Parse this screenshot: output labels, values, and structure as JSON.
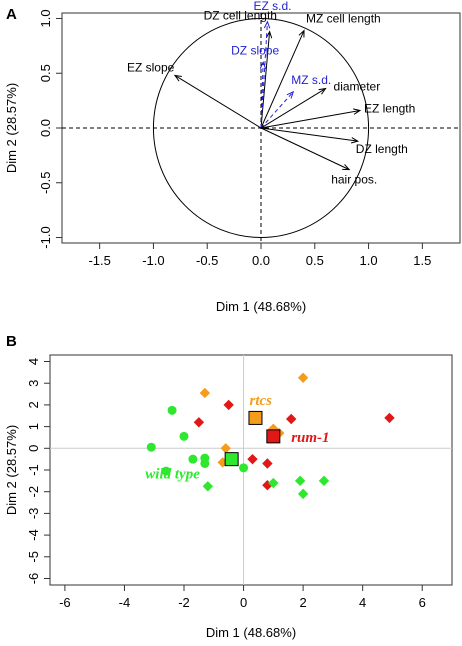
{
  "chart_data": [
    {
      "panel": "A",
      "type": "scatter",
      "subtype": "pca-correlation-circle",
      "xlabel": "Dim 1 (48.68%)",
      "ylabel": "Dim 2 (28.57%)",
      "xlim": [
        -1.85,
        1.85
      ],
      "ylim": [
        -1.05,
        1.05
      ],
      "x_ticks": [
        "-1.5",
        "-1.0",
        "-0.5",
        "0.0",
        "0.5",
        "1.0",
        "1.5"
      ],
      "y_ticks": [
        "-1.0",
        "-0.5",
        "0.0",
        "0.5",
        "1.0"
      ],
      "grid": false,
      "unit_circle": true,
      "active_color": "#000000",
      "supplementary_color": "#1f1fd6",
      "variables": [
        {
          "label": "EZ slope",
          "x": -0.8,
          "y": 0.48,
          "supplementary": false
        },
        {
          "label": "DZ cell length",
          "x": 0.08,
          "y": 0.88,
          "supplementary": false
        },
        {
          "label": "MZ cell length",
          "x": 0.4,
          "y": 0.89,
          "supplementary": false
        },
        {
          "label": "EZ s.d.",
          "x": 0.06,
          "y": 0.97,
          "supplementary": true
        },
        {
          "label": "DZ slope",
          "x": 0.02,
          "y": 0.6,
          "supplementary": true
        },
        {
          "label": "MZ s.d.",
          "x": 0.3,
          "y": 0.33,
          "supplementary": true
        },
        {
          "label": "diameter",
          "x": 0.6,
          "y": 0.36,
          "supplementary": false
        },
        {
          "label": "EZ length",
          "x": 0.92,
          "y": 0.16,
          "supplementary": false
        },
        {
          "label": "DZ length",
          "x": 0.9,
          "y": -0.12,
          "supplementary": false
        },
        {
          "label": "hair pos.",
          "x": 0.82,
          "y": -0.38,
          "supplementary": false
        }
      ]
    },
    {
      "panel": "B",
      "type": "scatter",
      "subtype": "pca-individuals",
      "xlabel": "Dim 1 (48.68%)",
      "ylabel": "Dim 2 (28.57%)",
      "xlim": [
        -6.5,
        7.0
      ],
      "ylim": [
        -6.3,
        4.3
      ],
      "x_ticks": [
        "-6",
        "-4",
        "-2",
        "0",
        "2",
        "4",
        "6"
      ],
      "y_ticks": [
        "-6",
        "-5",
        "-4",
        "-3",
        "-2",
        "-1",
        "0",
        "1",
        "2",
        "3",
        "4"
      ],
      "grid": false,
      "groups": [
        {
          "name": "rtcs",
          "color": "#f59c1a",
          "centroid": {
            "x": 0.4,
            "y": 1.4
          },
          "label_pos": {
            "x": 0.2,
            "y": 2.0
          },
          "points": [
            {
              "x": -1.3,
              "y": 2.55,
              "shape": "diamond"
            },
            {
              "x": 2.0,
              "y": 3.25,
              "shape": "diamond"
            },
            {
              "x": -0.6,
              "y": 0.0,
              "shape": "diamond"
            },
            {
              "x": -0.7,
              "y": -0.65,
              "shape": "diamond"
            },
            {
              "x": 1.0,
              "y": 0.9,
              "shape": "diamond"
            },
            {
              "x": 1.2,
              "y": 0.7,
              "shape": "diamond"
            }
          ]
        },
        {
          "name": "rum-1",
          "color": "#e01818",
          "centroid": {
            "x": 1.0,
            "y": 0.55
          },
          "label_pos": {
            "x": 1.6,
            "y": 0.3
          },
          "points": [
            {
              "x": -0.5,
              "y": 2.0,
              "shape": "diamond"
            },
            {
              "x": -1.5,
              "y": 1.2,
              "shape": "diamond"
            },
            {
              "x": 1.6,
              "y": 1.35,
              "shape": "diamond"
            },
            {
              "x": 4.9,
              "y": 1.4,
              "shape": "diamond"
            },
            {
              "x": 0.3,
              "y": -0.5,
              "shape": "diamond"
            },
            {
              "x": 0.8,
              "y": -0.7,
              "shape": "diamond"
            },
            {
              "x": 0.8,
              "y": -1.7,
              "shape": "diamond"
            }
          ]
        },
        {
          "name": "wild type",
          "color": "#2ee82e",
          "centroid": {
            "x": -0.4,
            "y": -0.5
          },
          "label_pos": {
            "x": -3.3,
            "y": -1.4
          },
          "points": [
            {
              "x": -3.1,
              "y": 0.05,
              "shape": "circle"
            },
            {
              "x": -2.6,
              "y": -1.05,
              "shape": "circle"
            },
            {
              "x": -2.4,
              "y": 1.75,
              "shape": "circle"
            },
            {
              "x": -2.0,
              "y": 0.55,
              "shape": "circle"
            },
            {
              "x": -1.7,
              "y": -0.5,
              "shape": "circle"
            },
            {
              "x": -1.3,
              "y": -0.45,
              "shape": "circle"
            },
            {
              "x": -1.3,
              "y": -0.7,
              "shape": "circle"
            },
            {
              "x": -1.2,
              "y": -1.75,
              "shape": "diamond"
            },
            {
              "x": 0.0,
              "y": -0.9,
              "shape": "circle"
            },
            {
              "x": 1.0,
              "y": -1.6,
              "shape": "diamond"
            },
            {
              "x": 1.9,
              "y": -1.5,
              "shape": "diamond"
            },
            {
              "x": 2.0,
              "y": -2.1,
              "shape": "diamond"
            },
            {
              "x": 2.7,
              "y": -1.5,
              "shape": "diamond"
            }
          ]
        }
      ]
    }
  ]
}
